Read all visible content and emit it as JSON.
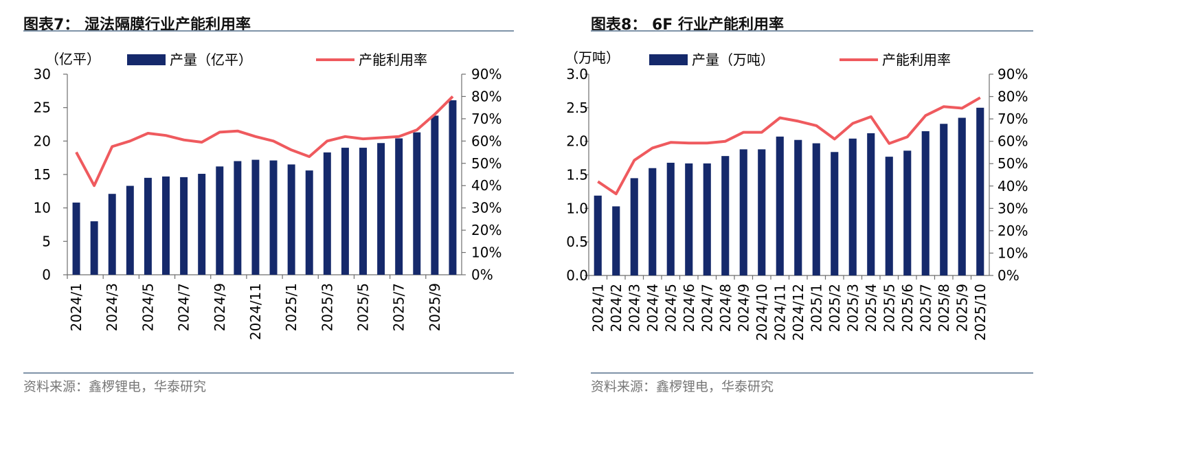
{
  "colors": {
    "bar": "#15296b",
    "line": "#ef5a5e",
    "axis": "#6e6e6e",
    "rule": "#7f93a8",
    "source": "#777777"
  },
  "charts": [
    {
      "title": "图表7：  湿法隔膜行业产能利用率",
      "source": "资料来源：鑫椤锂电，华泰研究",
      "unit": "（亿平）",
      "legend_bar": "产量（亿平）",
      "legend_line": "产能利用率",
      "left_ticks": [
        "0",
        "5",
        "10",
        "15",
        "20",
        "25",
        "30"
      ],
      "right_ticks": [
        "0%",
        "10%",
        "20%",
        "30%",
        "40%",
        "50%",
        "60%",
        "70%",
        "80%",
        "90%"
      ],
      "x_labels": [
        "2024/1",
        "2024/3",
        "2024/5",
        "2024/7",
        "2024/9",
        "2024/11",
        "2025/1",
        "2025/3",
        "2025/5",
        "2025/7",
        "2025/9"
      ]
    },
    {
      "title": "图表8：  6F 行业产能利用率",
      "source": "资料来源：鑫椤锂电，华泰研究",
      "unit": "（万吨）",
      "legend_bar": "产量（万吨）",
      "legend_line": "产能利用率",
      "left_ticks": [
        "0.0",
        "0.5",
        "1.0",
        "1.5",
        "2.0",
        "2.5",
        "3.0"
      ],
      "right_ticks": [
        "0%",
        "10%",
        "20%",
        "30%",
        "40%",
        "50%",
        "60%",
        "70%",
        "80%",
        "90%"
      ],
      "x_labels": [
        "2024/1",
        "2024/2",
        "2024/3",
        "2024/4",
        "2024/5",
        "2024/6",
        "2024/7",
        "2024/8",
        "2024/9",
        "2024/10",
        "2024/11",
        "2024/12",
        "2025/1",
        "2025/2",
        "2025/3",
        "2025/4",
        "2025/5",
        "2025/6",
        "2025/7",
        "2025/8",
        "2025/9",
        "2025/10"
      ]
    }
  ],
  "chart_data": [
    {
      "type": "bar",
      "title": "湿法隔膜行业产能利用率",
      "categories": [
        "2024/1",
        "2024/2",
        "2024/3",
        "2024/4",
        "2024/5",
        "2024/6",
        "2024/7",
        "2024/8",
        "2024/9",
        "2024/10",
        "2024/11",
        "2024/12",
        "2025/1",
        "2025/2",
        "2025/3",
        "2025/4",
        "2025/5",
        "2025/6",
        "2025/7",
        "2025/8",
        "2025/9",
        "2025/10"
      ],
      "series": [
        {
          "name": "产量（亿平）",
          "type": "bar",
          "axis": "left",
          "values": [
            10.8,
            8.0,
            12.1,
            13.3,
            14.5,
            14.7,
            14.6,
            15.1,
            16.2,
            17.0,
            17.2,
            17.1,
            16.5,
            15.6,
            18.3,
            19.0,
            19.0,
            19.7,
            20.4,
            21.3,
            23.8,
            26.1
          ]
        },
        {
          "name": "产能利用率",
          "type": "line",
          "axis": "right",
          "values": [
            0.55,
            0.4,
            0.575,
            0.6,
            0.635,
            0.625,
            0.605,
            0.595,
            0.64,
            0.645,
            0.62,
            0.6,
            0.56,
            0.53,
            0.6,
            0.62,
            0.61,
            0.615,
            0.62,
            0.65,
            0.72,
            0.8
          ]
        }
      ],
      "ylim_left": [
        0,
        30
      ],
      "ylim_right": [
        0,
        0.9
      ],
      "legend": "top"
    },
    {
      "type": "bar",
      "title": "6F 行业产能利用率",
      "categories": [
        "2024/1",
        "2024/2",
        "2024/3",
        "2024/4",
        "2024/5",
        "2024/6",
        "2024/7",
        "2024/8",
        "2024/9",
        "2024/10",
        "2024/11",
        "2024/12",
        "2025/1",
        "2025/2",
        "2025/3",
        "2025/4",
        "2025/5",
        "2025/6",
        "2025/7",
        "2025/8",
        "2025/9",
        "2025/10"
      ],
      "series": [
        {
          "name": "产量（万吨）",
          "type": "bar",
          "axis": "left",
          "values": [
            1.19,
            1.03,
            1.45,
            1.6,
            1.68,
            1.67,
            1.67,
            1.78,
            1.88,
            1.88,
            2.07,
            2.02,
            1.97,
            1.84,
            2.04,
            2.12,
            1.77,
            1.86,
            2.15,
            2.26,
            2.35,
            2.5
          ]
        },
        {
          "name": "产能利用率",
          "type": "line",
          "axis": "right",
          "values": [
            0.42,
            0.365,
            0.515,
            0.57,
            0.595,
            0.592,
            0.592,
            0.6,
            0.64,
            0.64,
            0.705,
            0.69,
            0.67,
            0.61,
            0.68,
            0.71,
            0.59,
            0.62,
            0.715,
            0.755,
            0.748,
            0.795
          ]
        }
      ],
      "ylim_left": [
        0,
        3.0
      ],
      "ylim_right": [
        0,
        0.9
      ],
      "legend": "top"
    }
  ]
}
